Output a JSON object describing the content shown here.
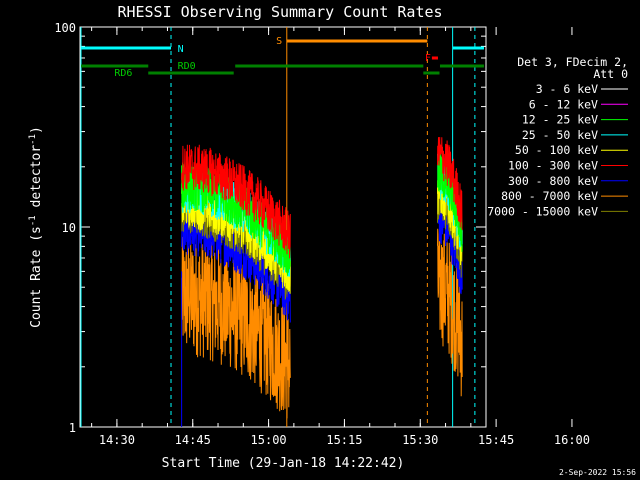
{
  "chart_data": {
    "type": "line",
    "title": "RHESSI Observing Summary Count Rates",
    "xlabel": "Start Time (29-Jan-18 14:22:42)",
    "ylabel": "Count Rate (s",
    "ylabel_sup": "-1",
    "ylabel_mid": " detector",
    "ylabel_end": ")",
    "yscale": "log",
    "ylim": [
      1,
      100
    ],
    "xlim_min": [
      22.7,
      103.0
    ],
    "x_ticks": [
      {
        "min": 30,
        "label": "14:30"
      },
      {
        "min": 45,
        "label": "14:45"
      },
      {
        "min": 60,
        "label": "15:00"
      },
      {
        "min": 75,
        "label": "15:15"
      },
      {
        "min": 90,
        "label": "15:30"
      },
      {
        "min": 105,
        "label": "15:45"
      },
      {
        "min": 120,
        "label": "16:00"
      }
    ],
    "y_ticks": [
      {
        "value": 1,
        "label": "1"
      },
      {
        "value": 10,
        "label": "10"
      },
      {
        "value": 100,
        "label": "100"
      }
    ],
    "legend_header": [
      "Det 3, FDecim 2,",
      "Att 0"
    ],
    "series": [
      {
        "name": "3 - 6 keV",
        "color": "#ffffff",
        "level": 1
      },
      {
        "name": "6 - 12 keV",
        "color": "#ff00ff",
        "level": 1
      },
      {
        "name": "12 - 25 keV",
        "color": "#00ff00",
        "level": 16
      },
      {
        "name": "25 - 50 keV",
        "color": "#00ffff",
        "level": 15.5
      },
      {
        "name": "50 - 100 keV",
        "color": "#ffff00",
        "level": 13
      },
      {
        "name": "100 - 300 keV",
        "color": "#ff0000",
        "level": 20
      },
      {
        "name": "300 - 800 keV",
        "color": "#0000ff",
        "level": 9.5
      },
      {
        "name": "800 - 7000 keV",
        "color": "#ff8c00",
        "level": 4.5
      },
      {
        "name": "7000 - 15000 keV",
        "color": "#808000",
        "level": 12
      }
    ],
    "annotations": {
      "night_label": "N",
      "saa_label": "S",
      "flare_label": "F",
      "rd0_label": "RD0",
      "rd6_label": "RD6",
      "timestamp": "2-Sep-2022 15:56"
    }
  }
}
